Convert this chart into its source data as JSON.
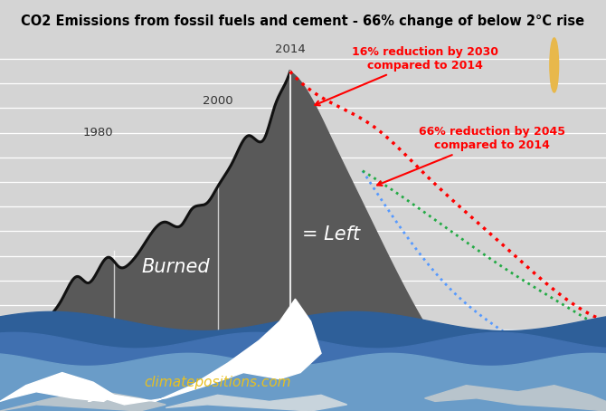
{
  "title": "CO2 Emissions from fossil fuels and cement - 66% change of below 2°C rise",
  "background_color": "#d4d4d4",
  "chart_bg_color": "#d4d4d4",
  "annotation1": "16% reduction by 2030\ncompared to 2014",
  "annotation2": "66% reduction by 2045\ncompared to 2014",
  "burned_label": "Burned",
  "left_label": "= Left",
  "website": "climatepositions.com",
  "sun_color": "#e8b84b",
  "dark_area_color": "#595959",
  "line_color": "#111111",
  "red_dot_color": "#ff0000",
  "blue_dot_color": "#5599ff",
  "green_dot_color": "#22aa44",
  "annotation_color": "#ff0000",
  "water_dark_color": "#2e5f99",
  "water_mid_color": "#4070b0",
  "water_light_color": "#6a9cc8",
  "ice_white": "#ffffff",
  "ice_gray": "#b8c4cc",
  "ice_light": "#c8d4dc"
}
